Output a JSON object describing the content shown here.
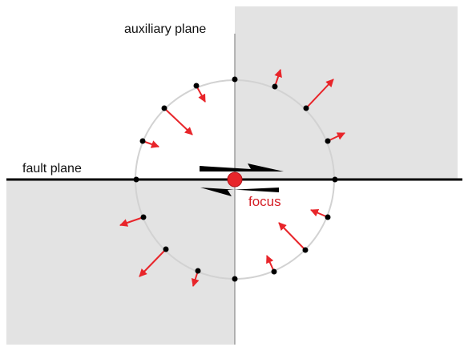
{
  "labels": {
    "auxiliary_plane": "auxiliary plane",
    "fault_plane": "fault plane",
    "focus": "focus"
  },
  "colors": {
    "background": "#ffffff",
    "shaded_quadrant": "#e3e3e3",
    "plane_line": "#000000",
    "auxiliary_line": "#8a8a8a",
    "circle": "#d2d2d2",
    "station": "#000000",
    "motion_arrow": "#e8252a",
    "focus_dot": "#e8252a",
    "slip_arrow": "#000000",
    "focus_text": "#d41f26"
  },
  "icons": {
    "slip_arrows": "half-arrow-pair"
  }
}
